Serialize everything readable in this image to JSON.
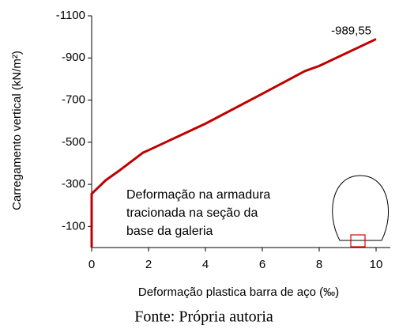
{
  "chart_data": {
    "type": "line",
    "x": [
      0,
      0,
      0.5,
      1,
      1.8,
      2,
      4,
      6,
      7.5,
      8,
      10
    ],
    "values": [
      0,
      -255,
      -320,
      -368,
      -450,
      -462,
      -588,
      -730,
      -838,
      -862,
      -989.55
    ],
    "value_labels": [
      null,
      null,
      null,
      null,
      null,
      null,
      null,
      null,
      null,
      null,
      "-989,55"
    ],
    "color": "#c00000",
    "xlim": [
      0,
      10.5
    ],
    "xticks": [
      0,
      2,
      4,
      6,
      8,
      10
    ],
    "ylim": [
      0,
      -1100
    ],
    "yticks": [
      -1100,
      -900,
      -700,
      -500,
      -300,
      -100
    ],
    "xlabel": "Deformação plastica barra de aço (‰)",
    "ylabel": "Carregamento vertical (kN/m²)",
    "inset_text": [
      "Deformação na armadura",
      "tracionada na seção da",
      "base da galeria"
    ],
    "caption": "Fonte: Própria autoria"
  }
}
